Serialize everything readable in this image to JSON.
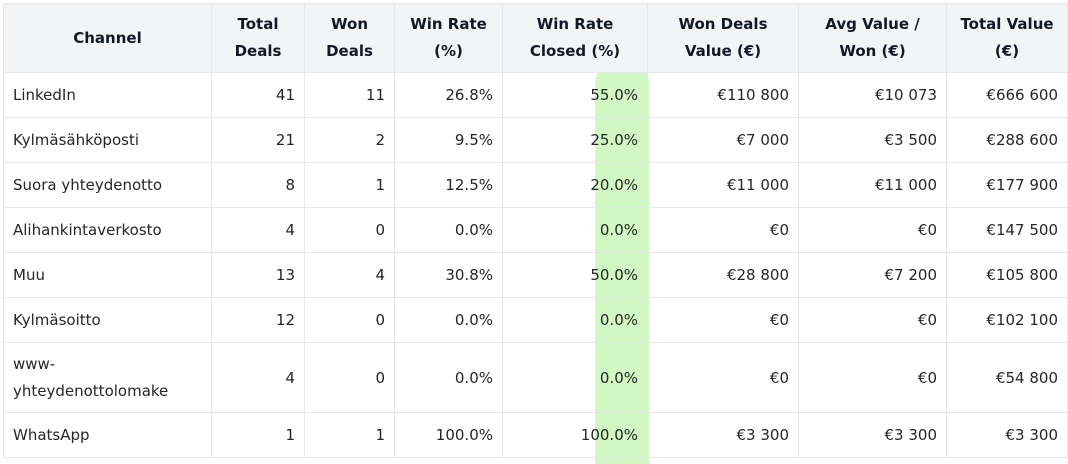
{
  "table": {
    "headers": [
      "Channel",
      "Total Deals",
      "Won Deals",
      "Win Rate (%)",
      "Win Rate Closed (%)",
      "Won Deals Value (€)",
      "Avg Value / Won (€)",
      "Total Value (€)"
    ],
    "rows": [
      {
        "channel": "LinkedIn",
        "total_deals": "41",
        "won_deals": "11",
        "win_rate": "26.8%",
        "win_rate_closed": "55.0%",
        "won_value": "€110 800",
        "avg_value": "€10 073",
        "total_value": "€666 600"
      },
      {
        "channel": "Kylmäsähköposti",
        "total_deals": "21",
        "won_deals": "2",
        "win_rate": "9.5%",
        "win_rate_closed": "25.0%",
        "won_value": "€7 000",
        "avg_value": "€3 500",
        "total_value": "€288 600"
      },
      {
        "channel": "Suora yhteydenotto",
        "total_deals": "8",
        "won_deals": "1",
        "win_rate": "12.5%",
        "win_rate_closed": "20.0%",
        "won_value": "€11 000",
        "avg_value": "€11 000",
        "total_value": "€177 900"
      },
      {
        "channel": "Alihankintaverkosto",
        "total_deals": "4",
        "won_deals": "0",
        "win_rate": "0.0%",
        "win_rate_closed": "0.0%",
        "won_value": "€0",
        "avg_value": "€0",
        "total_value": "€147 500"
      },
      {
        "channel": "Muu",
        "total_deals": "13",
        "won_deals": "4",
        "win_rate": "30.8%",
        "win_rate_closed": "50.0%",
        "won_value": "€28 800",
        "avg_value": "€7 200",
        "total_value": "€105 800"
      },
      {
        "channel": "Kylmäsoitto",
        "total_deals": "12",
        "won_deals": "0",
        "win_rate": "0.0%",
        "win_rate_closed": "0.0%",
        "won_value": "€0",
        "avg_value": "€0",
        "total_value": "€102 100"
      },
      {
        "channel": "www-yhteydenottolomake",
        "total_deals": "4",
        "won_deals": "0",
        "win_rate": "0.0%",
        "win_rate_closed": "0.0%",
        "won_value": "€0",
        "avg_value": "€0",
        "total_value": "€54 800"
      },
      {
        "channel": "WhatsApp",
        "total_deals": "1",
        "won_deals": "1",
        "win_rate": "100.0%",
        "win_rate_closed": "100.0%",
        "won_value": "€3 300",
        "avg_value": "€3 300",
        "total_value": "€3 300"
      }
    ]
  },
  "colors": {
    "header_bg": "#f3f4f6",
    "highlight": "#c9f7b9",
    "border": "#e5e7eb"
  }
}
